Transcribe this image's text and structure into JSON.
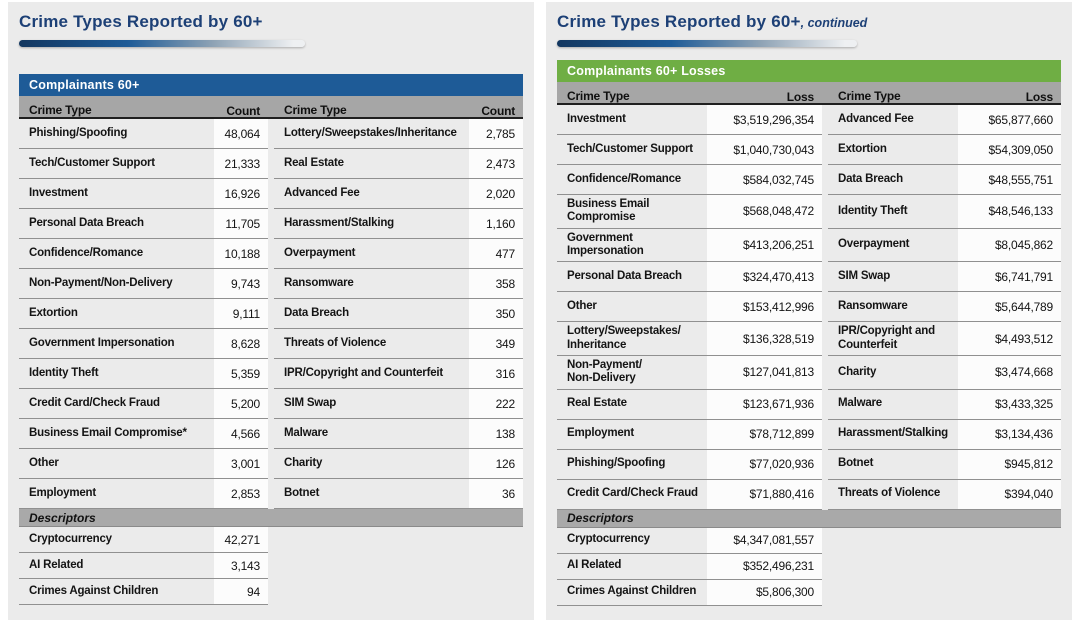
{
  "panels": [
    {
      "title": "Crime Types Reported by 60+",
      "title_suffix": "",
      "band_label": "Complainants 60+",
      "columns": [
        "Crime Type",
        "Count",
        "Crime Type",
        "Count"
      ],
      "rows": [
        {
          "c1": "Phishing/Spoofing",
          "v1": "48,064",
          "c2": "Lottery/Sweepstakes/Inheritance",
          "v2": "2,785"
        },
        {
          "c1": "Tech/Customer Support",
          "v1": "21,333",
          "c2": "Real Estate",
          "v2": "2,473"
        },
        {
          "c1": "Investment",
          "v1": "16,926",
          "c2": "Advanced Fee",
          "v2": "2,020"
        },
        {
          "c1": "Personal Data Breach",
          "v1": "11,705",
          "c2": "Harassment/Stalking",
          "v2": "1,160"
        },
        {
          "c1": "Confidence/Romance",
          "v1": "10,188",
          "c2": "Overpayment",
          "v2": "477"
        },
        {
          "c1": "Non-Payment/Non-Delivery",
          "v1": "9,743",
          "c2": "Ransomware",
          "v2": "358"
        },
        {
          "c1": "Extortion",
          "v1": "9,111",
          "c2": "Data Breach",
          "v2": "350"
        },
        {
          "c1": "Government Impersonation",
          "v1": "8,628",
          "c2": "Threats of Violence",
          "v2": "349"
        },
        {
          "c1": "Identity Theft",
          "v1": "5,359",
          "c2": "IPR/Copyright and Counterfeit",
          "v2": "316"
        },
        {
          "c1": "Credit Card/Check Fraud",
          "v1": "5,200",
          "c2": "SIM Swap",
          "v2": "222"
        },
        {
          "c1": "Business Email Compromise*",
          "v1": "4,566",
          "c2": "Malware",
          "v2": "138"
        },
        {
          "c1": "Other",
          "v1": "3,001",
          "c2": "Charity",
          "v2": "126"
        },
        {
          "c1": "Employment",
          "v1": "2,853",
          "c2": "Botnet",
          "v2": "36"
        }
      ],
      "descriptors_label": "Descriptors",
      "descriptor_rows": [
        {
          "label": "Cryptocurrency",
          "value": "42,271"
        },
        {
          "label": "AI Related",
          "value": "3,143"
        },
        {
          "label": "Crimes Against Children",
          "value": "94"
        }
      ]
    },
    {
      "title": "Crime Types Reported by 60+",
      "title_suffix": ", continued",
      "band_label": "Complainants 60+ Losses",
      "columns": [
        "Crime Type",
        "Loss",
        "Crime Type",
        "Loss"
      ],
      "rows": [
        {
          "c1": "Investment",
          "v1": "$3,519,296,354",
          "c2": "Advanced Fee",
          "v2": "$65,877,660"
        },
        {
          "c1": "Tech/Customer Support",
          "v1": "$1,040,730,043",
          "c2": "Extortion",
          "v2": "$54,309,050"
        },
        {
          "c1": "Confidence/Romance",
          "v1": "$584,032,745",
          "c2": "Data Breach",
          "v2": "$48,555,751"
        },
        {
          "c1": "Business Email\nCompromise",
          "v1": "$568,048,472",
          "c2": "Identity Theft",
          "v2": "$48,546,133"
        },
        {
          "c1": "Government\nImpersonation",
          "v1": "$413,206,251",
          "c2": "Overpayment",
          "v2": "$8,045,862"
        },
        {
          "c1": "Personal Data Breach",
          "v1": "$324,470,413",
          "c2": "SIM Swap",
          "v2": "$6,741,791"
        },
        {
          "c1": "Other",
          "v1": "$153,412,996",
          "c2": "Ransomware",
          "v2": "$5,644,789"
        },
        {
          "c1": "Lottery/Sweepstakes/\nInheritance",
          "v1": "$136,328,519",
          "c2": "IPR/Copyright and\nCounterfeit",
          "v2": "$4,493,512"
        },
        {
          "c1": "Non-Payment/\nNon-Delivery",
          "v1": "$127,041,813",
          "c2": "Charity",
          "v2": "$3,474,668"
        },
        {
          "c1": "Real Estate",
          "v1": "$123,671,936",
          "c2": "Malware",
          "v2": "$3,433,325"
        },
        {
          "c1": "Employment",
          "v1": "$78,712,899",
          "c2": "Harassment/Stalking",
          "v2": "$3,134,436"
        },
        {
          "c1": "Phishing/Spoofing",
          "v1": "$77,020,936",
          "c2": "Botnet",
          "v2": "$945,812"
        },
        {
          "c1": "Credit Card/Check Fraud",
          "v1": "$71,880,416",
          "c2": "Threats of Violence",
          "v2": "$394,040"
        }
      ],
      "descriptors_label": "Descriptors",
      "descriptor_rows": [
        {
          "label": "Cryptocurrency",
          "value": "$4,347,081,557"
        },
        {
          "label": "AI Related",
          "value": "$352,496,231"
        },
        {
          "label": "Crimes Against Children",
          "value": "$5,806,300"
        }
      ]
    }
  ],
  "colors": {
    "title_navy": "#1d4076",
    "band_blue": "#1e5b97",
    "band_green": "#6fae44",
    "column_header_gray": "#a6a6a6",
    "panel_background": "#ebebeb",
    "value_cell_background": "#fcfcfc"
  }
}
